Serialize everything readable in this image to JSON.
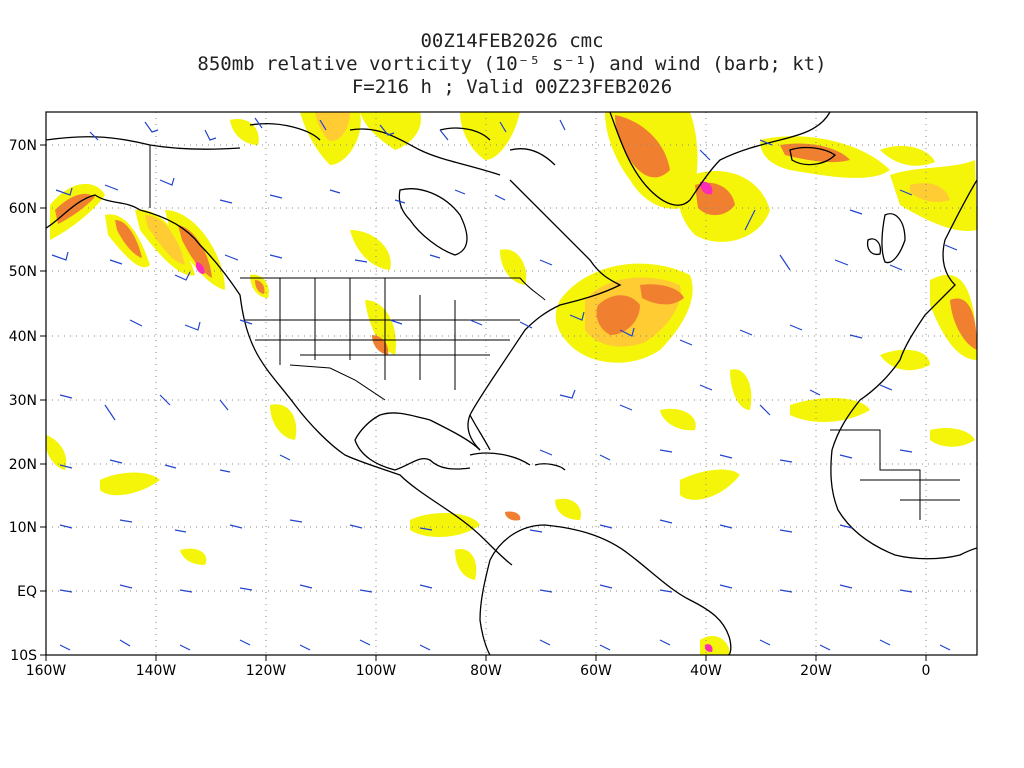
{
  "title": {
    "line1": "00Z14FEB2026 cmc",
    "line2": "850mb relative vorticity (10⁻⁵ s⁻¹) and wind (barb; kt)",
    "line3": "F=216 h ; Valid 00Z23FEB2026"
  },
  "axes": {
    "lon_labels": [
      "160W",
      "140W",
      "120W",
      "100W",
      "80W",
      "60W",
      "40W",
      "20W",
      "0"
    ],
    "lat_labels": [
      "70N",
      "60N",
      "50N",
      "40N",
      "30N",
      "20N",
      "10N",
      "EQ",
      "10S"
    ]
  },
  "colors": {
    "vort_low": "#f5f50a",
    "vort_mid": "#ffcc33",
    "vort_high": "#f08030",
    "vort_max": "#ff2ab5",
    "barb": "#2244cc",
    "coast": "#000000",
    "grid": "#888888"
  }
}
